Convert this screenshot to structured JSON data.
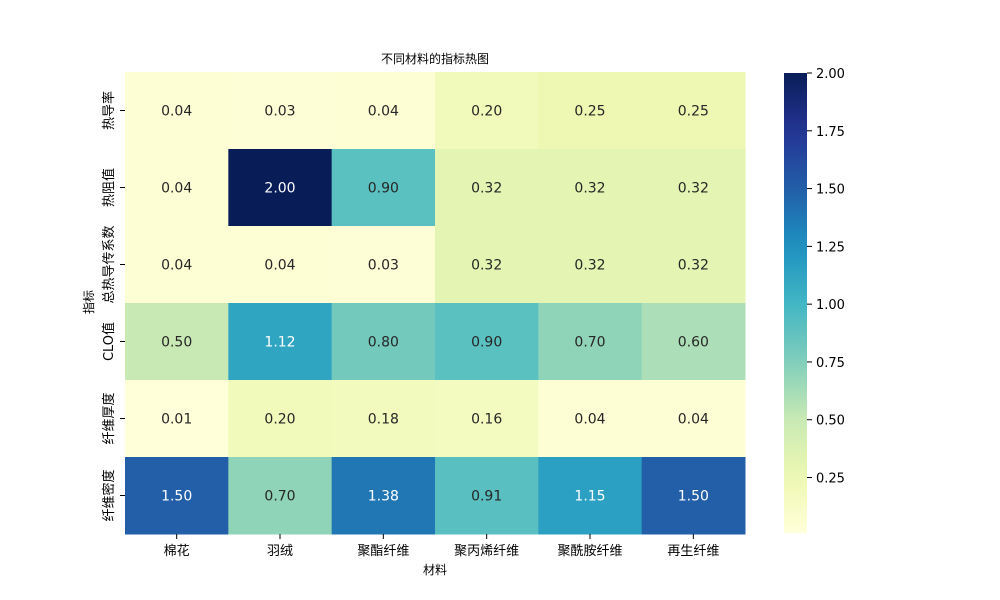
{
  "chart_data": {
    "type": "heatmap",
    "title": "不同材料的指标热图",
    "xlabel": "材料",
    "ylabel": "指标",
    "x_categories": [
      "棉花",
      "羽绒",
      "聚酯纤维",
      "聚丙烯纤维",
      "聚酰胺纤维",
      "再生纤维"
    ],
    "y_categories": [
      "热导率",
      "热阻值",
      "总热导传系数",
      "CLO值",
      "纤维厚度",
      "纤维密度"
    ],
    "values": [
      [
        0.04,
        0.03,
        0.04,
        0.2,
        0.25,
        0.25
      ],
      [
        0.04,
        2.0,
        0.9,
        0.32,
        0.32,
        0.32
      ],
      [
        0.04,
        0.04,
        0.03,
        0.32,
        0.32,
        0.32
      ],
      [
        0.5,
        1.12,
        0.8,
        0.9,
        0.7,
        0.6
      ],
      [
        0.01,
        0.2,
        0.18,
        0.16,
        0.04,
        0.04
      ],
      [
        1.5,
        0.7,
        1.38,
        0.91,
        1.15,
        1.5
      ]
    ],
    "value_labels": [
      [
        "0.04",
        "0.03",
        "0.04",
        "0.20",
        "0.25",
        "0.25"
      ],
      [
        "0.04",
        "2.00",
        "0.90",
        "0.32",
        "0.32",
        "0.32"
      ],
      [
        "0.04",
        "0.04",
        "0.03",
        "0.32",
        "0.32",
        "0.32"
      ],
      [
        "0.50",
        "1.12",
        "0.80",
        "0.90",
        "0.70",
        "0.60"
      ],
      [
        "0.01",
        "0.20",
        "0.18",
        "0.16",
        "0.04",
        "0.04"
      ],
      [
        "1.50",
        "0.70",
        "1.38",
        "0.91",
        "1.15",
        "1.50"
      ]
    ],
    "colormap": "YlGnBu",
    "color_range": [
      0.01,
      2.0
    ],
    "colorbar_ticks": [
      0.25,
      0.5,
      0.75,
      1.0,
      1.25,
      1.5,
      1.75,
      2.0
    ],
    "colorbar_tick_labels": [
      "0.25",
      "0.50",
      "0.75",
      "1.00",
      "1.25",
      "1.50",
      "1.75",
      "2.00"
    ],
    "colorbar_placement": "right",
    "grid": false
  }
}
